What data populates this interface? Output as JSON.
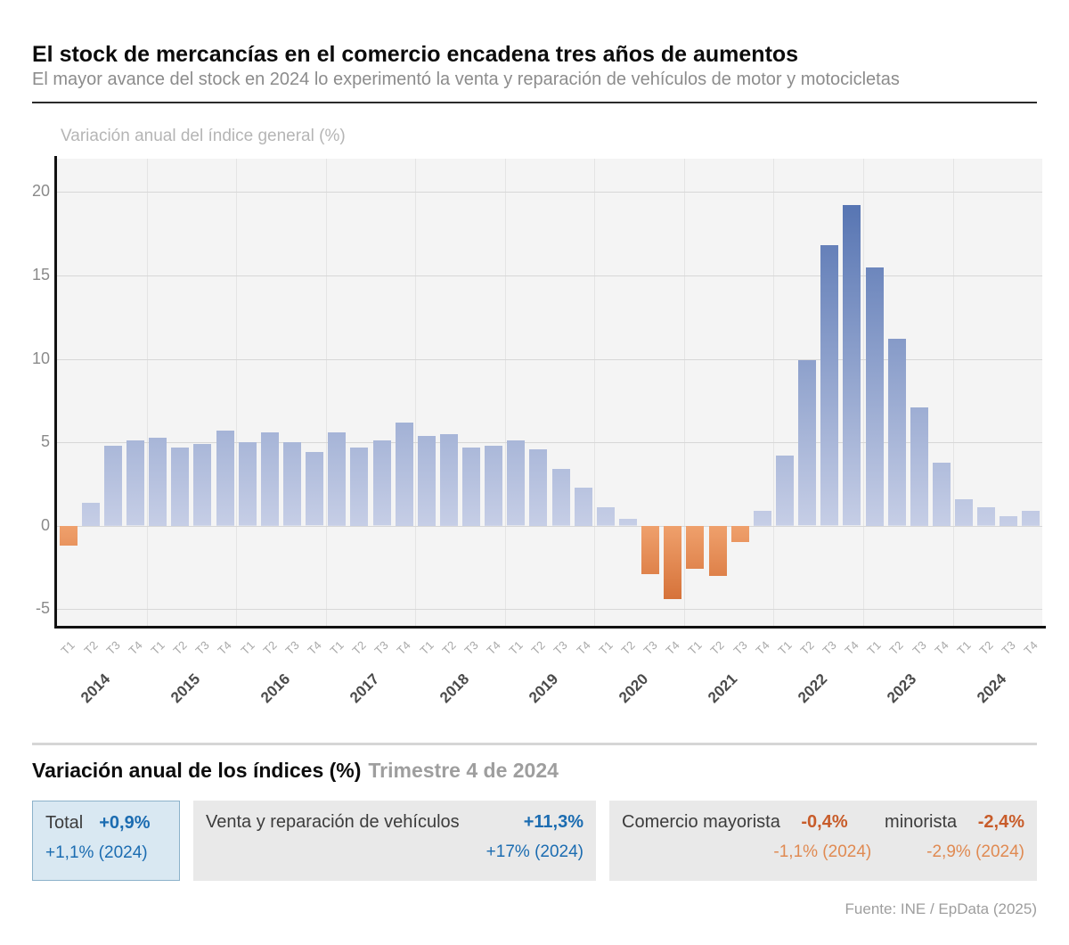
{
  "header": {
    "title": "El stock de mercancías en el comercio encadena tres años de aumentos",
    "subtitle": "El mayor avance del stock en 2024 lo experimentó la venta y reparación de vehículos de motor y motocicletas"
  },
  "chart_data": {
    "type": "bar",
    "axis_title": "Variación anual del índice general (%)",
    "ylabel": "Variación anual del índice general (%)",
    "ylim": [
      -6,
      22
    ],
    "yticks": [
      -5,
      0,
      5,
      10,
      15,
      20
    ],
    "grid": true,
    "legend": "none",
    "quarters": [
      "T1",
      "T2",
      "T3",
      "T4"
    ],
    "years": [
      "2014",
      "2015",
      "2016",
      "2017",
      "2018",
      "2019",
      "2020",
      "2021",
      "2022",
      "2023",
      "2024"
    ],
    "values": [
      -1.2,
      1.4,
      4.8,
      5.1,
      5.3,
      4.7,
      4.9,
      5.7,
      5.0,
      5.6,
      5.0,
      4.4,
      5.6,
      4.7,
      5.1,
      6.2,
      5.4,
      5.5,
      4.7,
      4.8,
      5.1,
      4.6,
      3.4,
      2.3,
      1.1,
      0.4,
      -2.9,
      -4.4,
      -2.6,
      -3.0,
      -1.0,
      0.9,
      4.2,
      9.9,
      16.8,
      19.2,
      15.5,
      11.2,
      7.1,
      3.8,
      1.6,
      1.1,
      0.6,
      0.9
    ],
    "colors": {
      "positive_dark": "#4768ab",
      "positive_light": "#c6cee6",
      "negative_dark": "#cd6227",
      "negative_light": "#efa06c",
      "plot_background": "#f4f4f4"
    }
  },
  "summary": {
    "title": "Variación anual de los índices (%)",
    "period": "Trimestre 4 de 2024",
    "total": {
      "label": "Total",
      "value": "+0,9%",
      "annual": "+1,1% (2024)"
    },
    "venta": {
      "label": "Venta y reparación de vehículos",
      "value": "+11,3%",
      "annual": "+17% (2024)"
    },
    "comercio": {
      "label1": "Comercio mayorista",
      "value1": "-0,4%",
      "label2": "minorista",
      "value2": "-2,4%",
      "annual1": "-1,1% (2024)",
      "annual2": "-2,9% (2024)"
    }
  },
  "source": "Fuente: INE / EpData (2025)"
}
